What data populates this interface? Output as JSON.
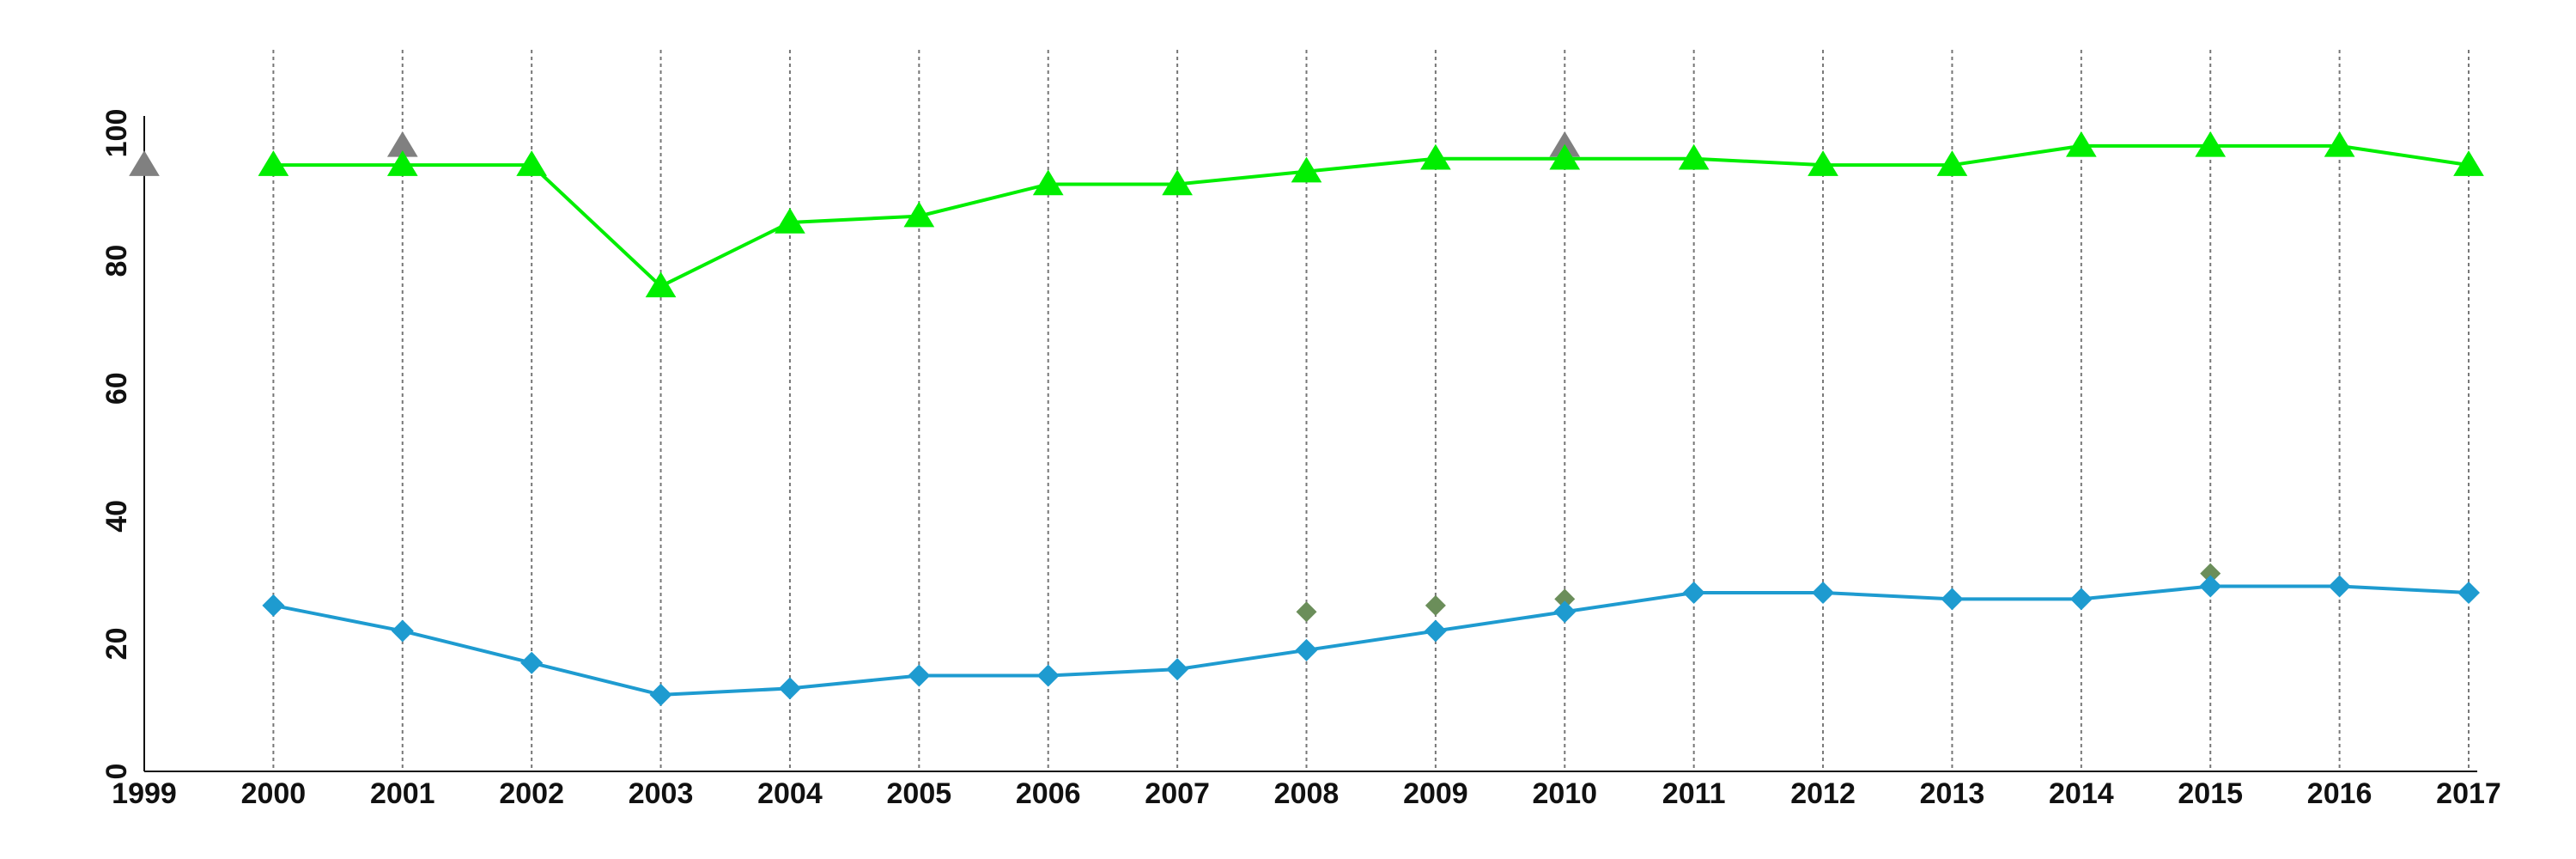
{
  "chart_data": {
    "type": "line",
    "title": "",
    "xlabel": "",
    "ylabel": "",
    "x": [
      1999,
      2000,
      2001,
      2002,
      2003,
      2004,
      2005,
      2006,
      2007,
      2008,
      2009,
      2010,
      2011,
      2012,
      2013,
      2014,
      2015,
      2016,
      2017
    ],
    "xticks": [
      "1999",
      "2000",
      "2001",
      "2002",
      "2003",
      "2004",
      "2005",
      "2006",
      "2007",
      "2008",
      "2009",
      "2010",
      "2011",
      "2012",
      "2013",
      "2014",
      "2015",
      "2016",
      "2017"
    ],
    "yticks": [
      "0",
      "20",
      "40",
      "60",
      "80",
      "100"
    ],
    "ylim": [
      0,
      100
    ],
    "grid": "vertical dashed lines at each year",
    "legend": "none",
    "series": [
      {
        "color": "#00ee00",
        "marker": "triangle",
        "line": true,
        "x": [
          2000,
          2001,
          2002,
          2003,
          2004,
          2005,
          2006,
          2007,
          2008,
          2009,
          2010,
          2011,
          2012,
          2013,
          2014,
          2015,
          2016,
          2017
        ],
        "values": [
          95,
          95,
          95,
          76,
          86,
          87,
          92,
          92,
          94,
          96,
          96,
          96,
          95,
          95,
          98,
          98,
          98,
          95
        ]
      },
      {
        "color": "#1e9bd0",
        "marker": "diamond",
        "line": true,
        "x": [
          2000,
          2001,
          2002,
          2003,
          2004,
          2005,
          2006,
          2007,
          2008,
          2009,
          2010,
          2011,
          2012,
          2013,
          2014,
          2015,
          2016,
          2017
        ],
        "values": [
          26,
          22,
          17,
          12,
          13,
          15,
          15,
          16,
          19,
          22,
          25,
          28,
          28,
          27,
          27,
          29,
          29,
          28
        ]
      },
      {
        "color": "#808080",
        "marker": "triangle",
        "line": false,
        "x": [
          1999,
          2001,
          2010
        ],
        "values": [
          95,
          98,
          98
        ]
      },
      {
        "color": "#6b8e5a",
        "marker": "diamond",
        "line": false,
        "x": [
          2008,
          2009,
          2010,
          2015
        ],
        "values": [
          25,
          26,
          27,
          31
        ]
      }
    ]
  }
}
